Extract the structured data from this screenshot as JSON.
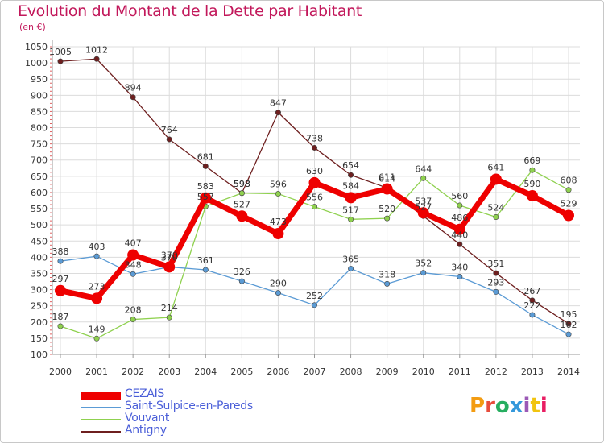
{
  "header": {
    "title": "Evolution du Montant de la Dette par Habitant",
    "subtitle": "(en €)"
  },
  "logo": {
    "text": "Proxiti",
    "colors": [
      "#f39c12",
      "#e74c3c",
      "#27ae60",
      "#3498db",
      "#9b59b6",
      "#f1c40f",
      "#e91e63"
    ]
  },
  "chart_data": {
    "type": "line",
    "title": "Evolution du Montant de la Dette par Habitant",
    "subtitle": "(en €)",
    "x": [
      "2000",
      "2001",
      "2002",
      "2003",
      "2004",
      "2005",
      "2006",
      "2007",
      "2008",
      "2009",
      "2010",
      "2011",
      "2012",
      "2013",
      "2014"
    ],
    "ylim": [
      100,
      1050
    ],
    "yticks": [
      100,
      150,
      200,
      250,
      300,
      350,
      400,
      450,
      500,
      550,
      600,
      650,
      700,
      750,
      800,
      850,
      900,
      950,
      1000,
      1050
    ],
    "grid": true,
    "legend_position": "bottom-left",
    "series": [
      {
        "name": "CEZAIS",
        "color": "#ee0000",
        "values": [
          297,
          273,
          407,
          370,
          583,
          527,
          473,
          630,
          584,
          611,
          537,
          486,
          641,
          590,
          529
        ]
      },
      {
        "name": "Saint-Sulpice-en-Pareds",
        "color": "#5b9bd5",
        "values": [
          388,
          403,
          348,
          370,
          361,
          326,
          290,
          252,
          365,
          318,
          352,
          340,
          293,
          222,
          162
        ]
      },
      {
        "name": "Vouvant",
        "color": "#8fd14f",
        "values": [
          187,
          149,
          208,
          214,
          557,
          598,
          596,
          556,
          517,
          520,
          644,
          560,
          524,
          669,
          608
        ]
      },
      {
        "name": "Antigny",
        "color": "#6e1f1f",
        "values": [
          1005,
          1012,
          894,
          764,
          681,
          598,
          847,
          738,
          654,
          614,
          527,
          440,
          351,
          267,
          195
        ]
      }
    ]
  }
}
